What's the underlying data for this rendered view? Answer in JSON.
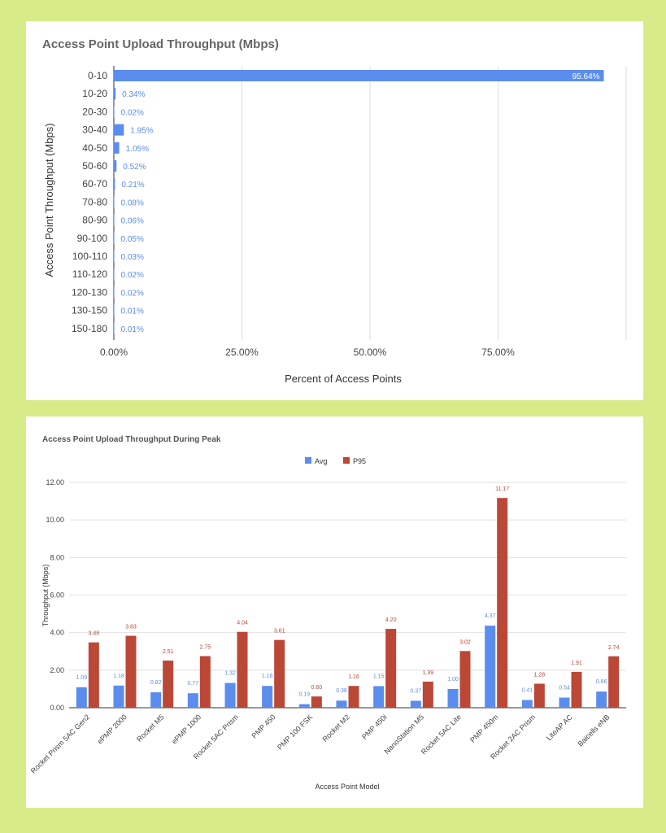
{
  "chart_data": [
    {
      "type": "bar",
      "orientation": "horizontal",
      "title": "Access Point Upload Throughput (Mbps)",
      "xlabel": "Percent of Access Points",
      "ylabel": "Access Point Throughput (Mbps)",
      "categories": [
        "0-10",
        "10-20",
        "20-30",
        "30-40",
        "40-50",
        "50-60",
        "60-70",
        "70-80",
        "80-90",
        "90-100",
        "100-110",
        "110-120",
        "120-130",
        "130-150",
        "150-180"
      ],
      "values": [
        95.64,
        0.34,
        0.02,
        1.95,
        1.05,
        0.52,
        0.21,
        0.08,
        0.06,
        0.05,
        0.03,
        0.02,
        0.02,
        0.01,
        0.01
      ],
      "data_labels": [
        "95.64%",
        "0.34%",
        "0.02%",
        "1.95%",
        "1.05%",
        "0.52%",
        "0.21%",
        "0.08%",
        "0.06%",
        "0.05%",
        "0.03%",
        "0.02%",
        "0.02%",
        "0.01%",
        "0.01%"
      ],
      "xticks": [
        "0.00%",
        "25.00%",
        "50.00%",
        "75.00%"
      ],
      "xlim": [
        0,
        100
      ],
      "grid": true,
      "color": "#5b8def"
    },
    {
      "type": "bar",
      "title": "Access Point Upload Throughput During Peak",
      "xlabel": "Access Point Model",
      "ylabel": "Throughput (Mbps)",
      "categories": [
        "Rocket Prism 5AC Gen2",
        "ePMP 2000",
        "Rocket M5",
        "ePMP 1000",
        "Rocket 5AC Prism",
        "PMP 450",
        "PMP 100 FSK",
        "Rocket M2",
        "PMP 450i",
        "NanoStation M5",
        "Rocket 5AC Lite",
        "PMP 450m",
        "Rocket 2AC Prism",
        "LiteAP AC",
        "Baicells eNB"
      ],
      "series": [
        {
          "name": "Avg",
          "color": "#5b8def",
          "values": [
            1.09,
            1.18,
            0.82,
            0.77,
            1.32,
            1.16,
            0.19,
            0.38,
            1.15,
            0.37,
            1.0,
            4.37,
            0.41,
            0.54,
            0.86
          ],
          "labels": [
            "1.09",
            "1.18",
            "0.82",
            "0.77",
            "1.32",
            "1.16",
            "0.19",
            "0.38",
            "1.15",
            "0.37",
            "1.00",
            "4.37",
            "0.41",
            "0.54",
            "0.86"
          ]
        },
        {
          "name": "P95",
          "color": "#bb4837",
          "values": [
            3.48,
            3.83,
            2.51,
            2.75,
            4.04,
            3.61,
            0.6,
            1.16,
            4.2,
            1.39,
            3.02,
            11.17,
            1.28,
            1.91,
            2.74
          ],
          "labels": [
            "3.48",
            "3.83",
            "2.51",
            "2.75",
            "4.04",
            "3.61",
            "0.60",
            "1.16",
            "4.20",
            "1.39",
            "3.02",
            "11.17",
            "1.28",
            "1.91",
            "2.74"
          ]
        }
      ],
      "yticks": [
        "0.00",
        "2.00",
        "4.00",
        "6.00",
        "8.00",
        "10.00",
        "12.00"
      ],
      "ylim": [
        0,
        12
      ],
      "legend": "top-center",
      "grid": true
    }
  ]
}
